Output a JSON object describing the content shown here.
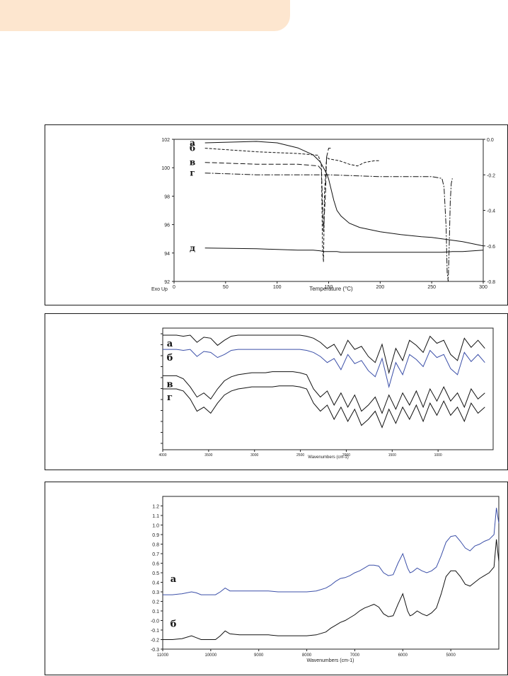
{
  "header_tab": {
    "color": "#fde6cf"
  },
  "chart_data": [
    {
      "type": "line",
      "x": [
        30,
        80,
        100,
        120,
        135,
        142,
        145,
        148,
        150,
        152,
        155,
        158,
        162,
        170,
        180,
        200,
        220,
        240,
        250,
        260,
        270,
        280,
        290,
        300
      ],
      "xticks": [
        0,
        50,
        100,
        150,
        200,
        250,
        300
      ],
      "xlim": [
        0,
        300
      ],
      "xlabel": "Temperature (°C)",
      "yticks": [
        92,
        94,
        96,
        98,
        100,
        102
      ],
      "ylim": [
        92,
        102
      ],
      "y2ticks": [
        "0.0",
        "-0.2",
        "-0.4",
        "-0.6",
        "-0.8"
      ],
      "y2lim": [
        -0.8,
        0
      ],
      "corner_label": "Exo Up",
      "series": [
        {
          "name": "а",
          "values": [
            101.75,
            101.85,
            101.75,
            101.4,
            100.9,
            100.4,
            100.0,
            99.6,
            99.2,
            98.6,
            97.7,
            97.0,
            96.6,
            96.1,
            95.8,
            95.5,
            95.3,
            95.15,
            95.1,
            95.0,
            94.9,
            94.8,
            94.65,
            94.5
          ]
        },
        {
          "name": "д",
          "values": [
            94.35,
            94.3,
            94.25,
            94.2,
            94.2,
            94.15,
            94.1,
            94.1,
            94.1,
            94.1,
            94.1,
            94.1,
            94.05,
            94.05,
            94.05,
            94.05,
            94.05,
            94.05,
            94.05,
            94.05,
            94.1,
            94.1,
            94.15,
            94.2
          ]
        },
        {
          "name": "б",
          "axis": "right",
          "x": [
            30,
            80,
            120,
            140,
            143,
            144,
            145,
            146,
            148,
            150,
            160,
            170,
            178,
            185,
            195,
            200
          ],
          "values": [
            -0.05,
            -0.07,
            -0.08,
            -0.09,
            -0.15,
            -0.6,
            -0.69,
            -0.3,
            -0.1,
            -0.11,
            -0.12,
            -0.14,
            -0.15,
            -0.13,
            -0.12,
            -0.12
          ]
        },
        {
          "name": "в",
          "axis": "right",
          "x": [
            30,
            80,
            120,
            140,
            143,
            145,
            147,
            148,
            150,
            152
          ],
          "values": [
            -0.13,
            -0.14,
            -0.14,
            -0.15,
            -0.17,
            -0.52,
            -0.3,
            -0.1,
            -0.05,
            -0.05
          ]
        },
        {
          "name": "г",
          "axis": "right",
          "x": [
            30,
            80,
            150,
            200,
            250,
            260,
            262,
            264,
            265,
            266,
            267,
            268,
            269,
            270
          ],
          "values": [
            -0.19,
            -0.2,
            -0.2,
            -0.21,
            -0.21,
            -0.22,
            -0.27,
            -0.5,
            -0.75,
            -0.8,
            -0.6,
            -0.35,
            -0.25,
            -0.22
          ]
        }
      ]
    },
    {
      "type": "line",
      "xlabel": "Wavenumbers (cm-1)",
      "xlim": [
        4000,
        400
      ],
      "xticks": [
        4000,
        3500,
        3000,
        2500,
        2000,
        1500,
        1000
      ],
      "ylim": [
        0,
        120
      ],
      "series": [
        {
          "name": "а",
          "values": [
            113,
            113,
            113,
            112,
            113,
            106,
            111,
            110,
            103,
            108,
            112,
            113,
            113,
            113,
            113,
            113,
            113,
            113,
            113,
            113,
            113,
            112,
            110,
            106,
            100,
            104,
            93,
            108,
            99,
            102,
            92,
            86,
            104,
            76,
            100,
            88,
            108,
            103,
            96,
            112,
            105,
            108,
            94,
            88,
            110,
            101,
            108,
            100
          ]
        },
        {
          "name": "б",
          "values": [
            99,
            99,
            99,
            98,
            99,
            92,
            97,
            96,
            91,
            94,
            98,
            99,
            99,
            99,
            99,
            99,
            99,
            99,
            99,
            99,
            99,
            98,
            96,
            92,
            86,
            90,
            79,
            94,
            85,
            88,
            78,
            72,
            90,
            62,
            86,
            74,
            94,
            89,
            82,
            98,
            91,
            94,
            80,
            74,
            96,
            87,
            94,
            86
          ]
        },
        {
          "name": "в",
          "values": [
            73,
            73,
            73,
            70,
            62,
            52,
            56,
            50,
            60,
            68,
            72,
            74,
            75,
            76,
            76,
            76,
            77,
            77,
            77,
            77,
            76,
            74,
            60,
            52,
            58,
            44,
            56,
            42,
            54,
            38,
            44,
            52,
            36,
            54,
            40,
            56,
            44,
            58,
            42,
            60,
            48,
            62,
            48,
            56,
            42,
            60,
            50,
            56
          ]
        },
        {
          "name": "г",
          "values": [
            60,
            60,
            60,
            58,
            50,
            38,
            42,
            36,
            46,
            54,
            58,
            60,
            61,
            62,
            62,
            62,
            62,
            63,
            63,
            63,
            62,
            60,
            46,
            38,
            44,
            30,
            42,
            28,
            40,
            24,
            30,
            38,
            22,
            40,
            26,
            42,
            30,
            44,
            28,
            46,
            34,
            48,
            34,
            42,
            28,
            46,
            36,
            42
          ]
        }
      ]
    },
    {
      "type": "line",
      "xlabel": "Wavenumbers (cm-1)",
      "xlim": [
        11000,
        4000
      ],
      "xticks": [
        11000,
        10000,
        9000,
        8000,
        7000,
        6000,
        5000
      ],
      "ylim": [
        -0.3,
        1.3
      ],
      "yticks": [
        "1.2",
        "1.1",
        "1.0",
        "0.9",
        "0.8",
        "0.7",
        "0.6",
        "0.5",
        "0.4",
        "0.3",
        "0.2",
        "0.1",
        "-0.0",
        "-0.1",
        "-0.2",
        "-0.3"
      ],
      "series": [
        {
          "name": "а",
          "color": "#3b4fa8",
          "x": [
            11000,
            10800,
            10600,
            10400,
            10300,
            10200,
            10100,
            10000,
            9900,
            9800,
            9700,
            9600,
            9400,
            9200,
            9000,
            8800,
            8600,
            8400,
            8200,
            8000,
            7800,
            7600,
            7500,
            7400,
            7300,
            7200,
            7100,
            7000,
            6900,
            6800,
            6700,
            6600,
            6500,
            6400,
            6300,
            6200,
            6100,
            6000,
            5900,
            5850,
            5800,
            5700,
            5600,
            5500,
            5400,
            5300,
            5200,
            5100,
            5000,
            4900,
            4800,
            4700,
            4600,
            4500,
            4400,
            4300,
            4200,
            4100,
            4050,
            4000
          ],
          "values": [
            0.27,
            0.27,
            0.28,
            0.3,
            0.29,
            0.27,
            0.27,
            0.27,
            0.27,
            0.3,
            0.34,
            0.31,
            0.31,
            0.31,
            0.31,
            0.31,
            0.3,
            0.3,
            0.3,
            0.3,
            0.31,
            0.34,
            0.37,
            0.41,
            0.44,
            0.45,
            0.47,
            0.5,
            0.52,
            0.55,
            0.58,
            0.58,
            0.57,
            0.5,
            0.47,
            0.48,
            0.6,
            0.7,
            0.55,
            0.5,
            0.51,
            0.55,
            0.52,
            0.5,
            0.52,
            0.56,
            0.68,
            0.82,
            0.88,
            0.89,
            0.83,
            0.76,
            0.73,
            0.78,
            0.8,
            0.83,
            0.85,
            0.9,
            1.18,
            1.02
          ]
        },
        {
          "name": "б",
          "color": "#111111",
          "x": [
            11000,
            10800,
            10600,
            10400,
            10300,
            10200,
            10100,
            10000,
            9900,
            9800,
            9700,
            9600,
            9400,
            9200,
            9000,
            8800,
            8600,
            8400,
            8200,
            8000,
            7800,
            7600,
            7500,
            7400,
            7300,
            7200,
            7100,
            7000,
            6900,
            6800,
            6700,
            6600,
            6500,
            6400,
            6300,
            6200,
            6100,
            6000,
            5900,
            5850,
            5800,
            5700,
            5600,
            5500,
            5400,
            5300,
            5200,
            5100,
            5000,
            4900,
            4800,
            4700,
            4600,
            4500,
            4400,
            4300,
            4200,
            4100,
            4050,
            4000
          ],
          "values": [
            -0.2,
            -0.2,
            -0.19,
            -0.16,
            -0.18,
            -0.2,
            -0.2,
            -0.2,
            -0.2,
            -0.16,
            -0.11,
            -0.14,
            -0.15,
            -0.15,
            -0.15,
            -0.15,
            -0.16,
            -0.16,
            -0.16,
            -0.16,
            -0.15,
            -0.12,
            -0.08,
            -0.05,
            -0.02,
            0.0,
            0.03,
            0.06,
            0.1,
            0.13,
            0.15,
            0.17,
            0.14,
            0.07,
            0.04,
            0.05,
            0.17,
            0.28,
            0.1,
            0.05,
            0.06,
            0.1,
            0.07,
            0.05,
            0.08,
            0.13,
            0.28,
            0.46,
            0.52,
            0.52,
            0.46,
            0.38,
            0.36,
            0.4,
            0.44,
            0.47,
            0.5,
            0.56,
            0.85,
            0.62
          ]
        }
      ]
    }
  ]
}
